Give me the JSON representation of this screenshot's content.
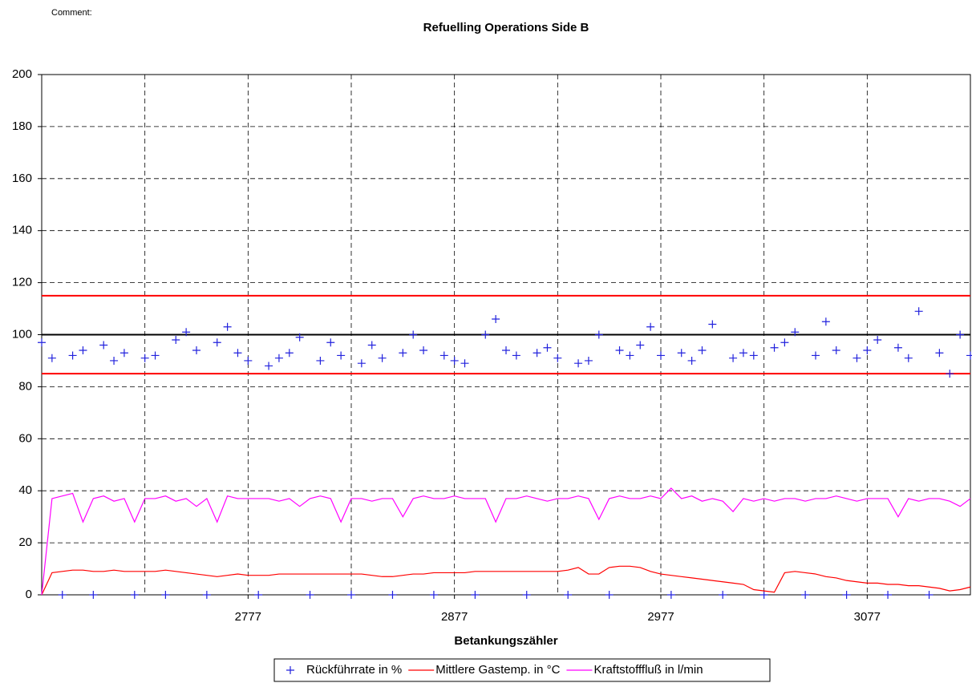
{
  "comment": "Comment:",
  "chart_data": {
    "type": "scatter-line",
    "title": "Refuelling Operations Side B",
    "x_label": "Betankungszähler",
    "xlim": [
      2677,
      3127
    ],
    "xticks": [
      2777,
      2877,
      2977,
      3077
    ],
    "xgrid": [
      2727,
      2777,
      2827,
      2877,
      2927,
      2977,
      3027,
      3077
    ],
    "ylim": [
      0,
      200
    ],
    "yticks": [
      0,
      20,
      40,
      60,
      80,
      100,
      120,
      140,
      160,
      180,
      200
    ],
    "grid": true,
    "reference_lines": [
      {
        "value": 115,
        "color": "#ff0000"
      },
      {
        "value": 100,
        "color": "#000000"
      },
      {
        "value": 85,
        "color": "#ff0000"
      }
    ],
    "legend": "bottom",
    "x": [
      2677,
      2682,
      2687,
      2692,
      2697,
      2702,
      2707,
      2712,
      2717,
      2722,
      2727,
      2732,
      2737,
      2742,
      2747,
      2752,
      2757,
      2762,
      2767,
      2772,
      2777,
      2782,
      2787,
      2792,
      2797,
      2802,
      2807,
      2812,
      2817,
      2822,
      2827,
      2832,
      2837,
      2842,
      2847,
      2852,
      2857,
      2862,
      2867,
      2872,
      2877,
      2882,
      2887,
      2892,
      2897,
      2902,
      2907,
      2912,
      2917,
      2922,
      2927,
      2932,
      2937,
      2942,
      2947,
      2952,
      2957,
      2962,
      2967,
      2972,
      2977,
      2982,
      2987,
      2992,
      2997,
      3002,
      3007,
      3012,
      3017,
      3022,
      3027,
      3032,
      3037,
      3042,
      3047,
      3052,
      3057,
      3062,
      3067,
      3072,
      3077,
      3082,
      3087,
      3092,
      3097,
      3102,
      3107,
      3112,
      3117,
      3122,
      3127
    ],
    "series": [
      {
        "name": "Rückführrate in %",
        "color": "#2222dd",
        "marker": "plus",
        "values": [
          97,
          91,
          0,
          92,
          94,
          0,
          96,
          90,
          93,
          0,
          91,
          92,
          0,
          98,
          101,
          94,
          0,
          97,
          103,
          93,
          90,
          0,
          88,
          91,
          93,
          99,
          0,
          90,
          97,
          92,
          0,
          89,
          96,
          91,
          0,
          93,
          100,
          94,
          0,
          92,
          90,
          89,
          0,
          100,
          106,
          94,
          92,
          0,
          93,
          95,
          91,
          0,
          89,
          90,
          100,
          0,
          94,
          92,
          96,
          103,
          92,
          0,
          93,
          90,
          94,
          104,
          0,
          91,
          93,
          92,
          0,
          95,
          97,
          101,
          0,
          92,
          105,
          94,
          0,
          91,
          94,
          98,
          0,
          95,
          91,
          109,
          0,
          93,
          85,
          100,
          92
        ]
      },
      {
        "name": "Mittlere Gastemp. in °C",
        "color": "#ff0000",
        "marker": "line",
        "values": [
          0,
          8.5,
          9,
          9.5,
          9.5,
          9,
          9,
          9.5,
          9,
          9,
          9,
          9,
          9.5,
          9,
          8.5,
          8,
          7.5,
          7,
          7.5,
          8,
          7.5,
          7.5,
          7.5,
          8,
          8,
          8,
          8,
          8,
          8,
          8,
          8,
          8,
          7.5,
          7,
          7,
          7.5,
          8,
          8,
          8.5,
          8.5,
          8.5,
          8.5,
          9,
          9,
          9,
          9,
          9,
          9,
          9,
          9,
          9,
          9.5,
          10.5,
          8,
          8,
          10.5,
          11,
          11,
          10.5,
          9,
          8,
          7.5,
          7,
          6.5,
          6,
          5.5,
          5,
          4.5,
          4,
          2,
          1.5,
          1,
          8.5,
          9,
          8.5,
          8,
          7,
          6.5,
          5.5,
          5,
          4.5,
          4.5,
          4,
          4,
          3.5,
          3.5,
          3,
          2.5,
          1.5,
          2,
          3
        ]
      },
      {
        "name": "Kraftstofffluß in l/min",
        "color": "#ff00ff",
        "marker": "line",
        "values": [
          0,
          37,
          38,
          39,
          28,
          37,
          38,
          36,
          37,
          28,
          37,
          37,
          38,
          36,
          37,
          34,
          37,
          28,
          38,
          37,
          37,
          37,
          37,
          36,
          37,
          34,
          37,
          38,
          37,
          28,
          37,
          37,
          36,
          37,
          37,
          30,
          37,
          38,
          37,
          37,
          38,
          37,
          37,
          37,
          28,
          37,
          37,
          38,
          37,
          36,
          37,
          37,
          38,
          37,
          29,
          37,
          38,
          37,
          37,
          38,
          37,
          41,
          37,
          38,
          36,
          37,
          36,
          32,
          37,
          36,
          37,
          36,
          37,
          37,
          36,
          37,
          37,
          38,
          37,
          36,
          37,
          37,
          37,
          30,
          37,
          36,
          37,
          37,
          36,
          34,
          37
        ]
      }
    ]
  }
}
